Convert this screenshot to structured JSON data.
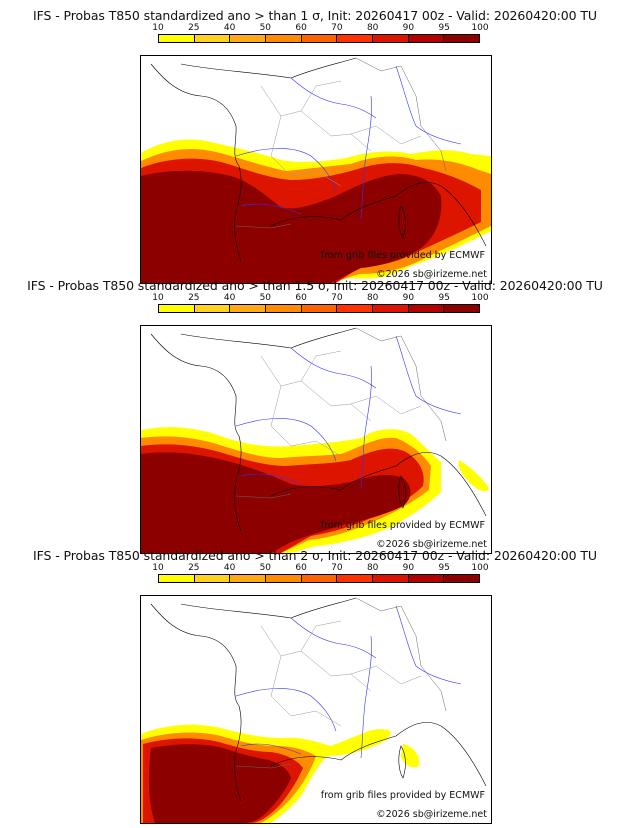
{
  "colorbar": {
    "ticks": [
      "10",
      "25",
      "40",
      "50",
      "60",
      "70",
      "80",
      "90",
      "95",
      "100"
    ],
    "colors": [
      "#ffff00",
      "#ffd21e",
      "#ffaa14",
      "#ff8c00",
      "#ff6400",
      "#ff3200",
      "#dc1400",
      "#b40000",
      "#8c0000"
    ]
  },
  "panels": [
    {
      "title": "IFS - Probas T850  standardized ano > than 1 σ, Init: 20260417 00z - Valid: 20260420:00 TU",
      "threshold_sigma": "1",
      "credit": "from grib files provided by ECMWF",
      "copyright": "©2026 sb@irizeme.net"
    },
    {
      "title": "IFS - Probas T850  standardized ano > than 1.5 σ, Init: 20260417 00z - Valid: 20260420:00 TU",
      "threshold_sigma": "1.5",
      "credit": "from grib files provided by ECMWF",
      "copyright": "©2026 sb@irizeme.net"
    },
    {
      "title": "IFS - Probas T850  standardized ano > than 2 σ, Init: 20260417 00z - Valid: 20260420:00 TU",
      "threshold_sigma": "2",
      "credit": "from grib files provided by ECMWF",
      "copyright": "©2026 sb@irizeme.net"
    }
  ]
}
